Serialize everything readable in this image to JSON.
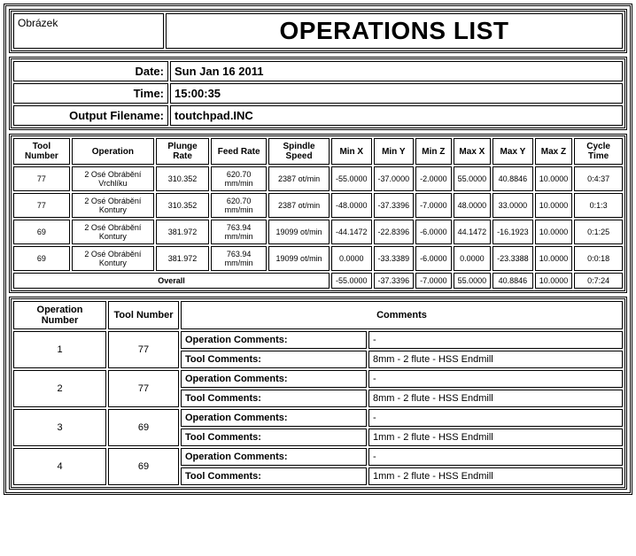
{
  "header": {
    "image_placeholder": "Obrázek",
    "title": "OPERATIONS LIST"
  },
  "meta": {
    "date_label": "Date:",
    "date_value": "Sun Jan 16 2011",
    "time_label": "Time:",
    "time_value": "15:00:35",
    "filename_label": "Output Filename:",
    "filename_value": "toutchpad.INC"
  },
  "ops_table": {
    "headers": [
      "Tool Number",
      "Operation",
      "Plunge Rate",
      "Feed Rate",
      "Spindle Speed",
      "Min X",
      "Min Y",
      "Min Z",
      "Max X",
      "Max Y",
      "Max Z",
      "Cycle Time"
    ],
    "rows": [
      [
        "77",
        "2 Osé Obrábění Vrchlíku",
        "310.352",
        "620.70 mm/min",
        "2387 ot/min",
        "-55.0000",
        "-37.0000",
        "-2.0000",
        "55.0000",
        "40.8846",
        "10.0000",
        "0:4:37"
      ],
      [
        "77",
        "2 Osé Obrábění Kontury",
        "310.352",
        "620.70 mm/min",
        "2387 ot/min",
        "-48.0000",
        "-37.3396",
        "-7.0000",
        "48.0000",
        "33.0000",
        "10.0000",
        "0:1:3"
      ],
      [
        "69",
        "2 Osé Obrábění Kontury",
        "381.972",
        "763.94 mm/min",
        "19099 ot/min",
        "-44.1472",
        "-22.8396",
        "-6.0000",
        "44.1472",
        "-16.1923",
        "10.0000",
        "0:1:25"
      ],
      [
        "69",
        "2 Osé Obrábění Kontury",
        "381.972",
        "763.94 mm/min",
        "19099 ot/min",
        "0.0000",
        "-33.3389",
        "-6.0000",
        "0.0000",
        "-23.3388",
        "10.0000",
        "0:0:18"
      ]
    ],
    "overall_label": "Overall",
    "overall": [
      "-55.0000",
      "-37.3396",
      "-7.0000",
      "55.0000",
      "40.8846",
      "10.0000",
      "0:7:24"
    ]
  },
  "comments_table": {
    "headers": [
      "Operation Number",
      "Tool Number",
      "Comments"
    ],
    "op_label": "Operation Comments:",
    "tool_label": "Tool Comments:",
    "rows": [
      {
        "op": "1",
        "tool": "77",
        "op_comment": "-",
        "tool_comment": "8mm - 2 flute - HSS Endmill"
      },
      {
        "op": "2",
        "tool": "77",
        "op_comment": "-",
        "tool_comment": "8mm - 2 flute - HSS Endmill"
      },
      {
        "op": "3",
        "tool": "69",
        "op_comment": "-",
        "tool_comment": "1mm - 2 flute - HSS Endmill"
      },
      {
        "op": "4",
        "tool": "69",
        "op_comment": "-",
        "tool_comment": "1mm - 2 flute - HSS Endmill"
      }
    ]
  }
}
